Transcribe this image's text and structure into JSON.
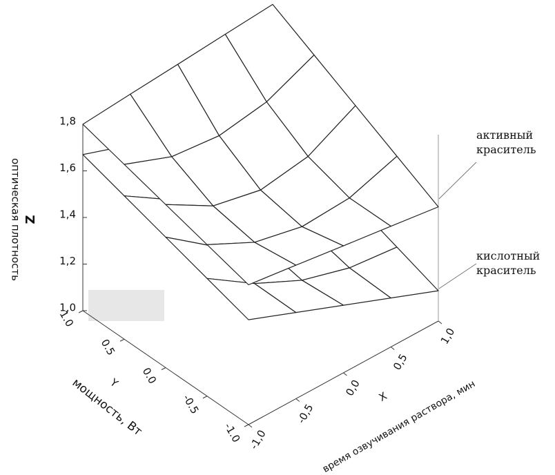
{
  "chart_data": {
    "type": "surface",
    "z_title": "Z",
    "z_label": "оптическая плотность",
    "y_title": "Y",
    "y_label": "мощность, Вт",
    "x_title": "X",
    "x_label": "время озвучивания раствора, мин",
    "x": [
      -1,
      -0.5,
      0,
      0.5,
      1
    ],
    "y": [
      -1,
      -0.5,
      0,
      0.5,
      1
    ],
    "xlim": [
      -1,
      1
    ],
    "ylim": [
      -1,
      1
    ],
    "zlim": [
      1.0,
      1.8
    ],
    "xticks": [
      {
        "value": -1,
        "label": "-1,0"
      },
      {
        "value": -0.5,
        "label": "-0,5"
      },
      {
        "value": 0,
        "label": "0,0"
      },
      {
        "value": 0.5,
        "label": "0,5"
      },
      {
        "value": 1,
        "label": "1,0"
      }
    ],
    "yticks": [
      {
        "value": 1,
        "label": "1.0"
      },
      0.5,
      {
        "value": 0,
        "label": "0.0"
      },
      -0.5,
      {
        "value": -1,
        "label": "-1.0"
      }
    ],
    "zticks": [
      {
        "value": 1,
        "label": "1,0"
      },
      {
        "value": 1.2,
        "label": "1,2"
      },
      {
        "value": 1.4,
        "label": "1,4"
      },
      {
        "value": 1.6,
        "label": "1,6"
      },
      {
        "value": 1.8,
        "label": "1,8"
      }
    ],
    "series": [
      {
        "name": "активный краситель",
        "color": "#222222",
        "z": [
          [
            1.6,
            1.573,
            1.545,
            1.518,
            1.49
          ],
          [
            1.65,
            1.549,
            1.505,
            1.517,
            1.585
          ],
          [
            1.7,
            1.583,
            1.54,
            1.573,
            1.68
          ],
          [
            1.75,
            1.672,
            1.651,
            1.685,
            1.775
          ],
          [
            1.8,
            1.818,
            1.835,
            1.853,
            1.87
          ]
        ]
      },
      {
        "name": "кислотный краситель",
        "color": "#222222",
        "z": [
          [
            1.45,
            1.37,
            1.29,
            1.21,
            1.13
          ],
          [
            1.505,
            1.372,
            1.275,
            1.217,
            1.195
          ],
          [
            1.56,
            1.41,
            1.31,
            1.26,
            1.26
          ],
          [
            1.615,
            1.487,
            1.395,
            1.342,
            1.325
          ],
          [
            1.67,
            1.6,
            1.53,
            1.46,
            1.39
          ]
        ]
      }
    ]
  }
}
